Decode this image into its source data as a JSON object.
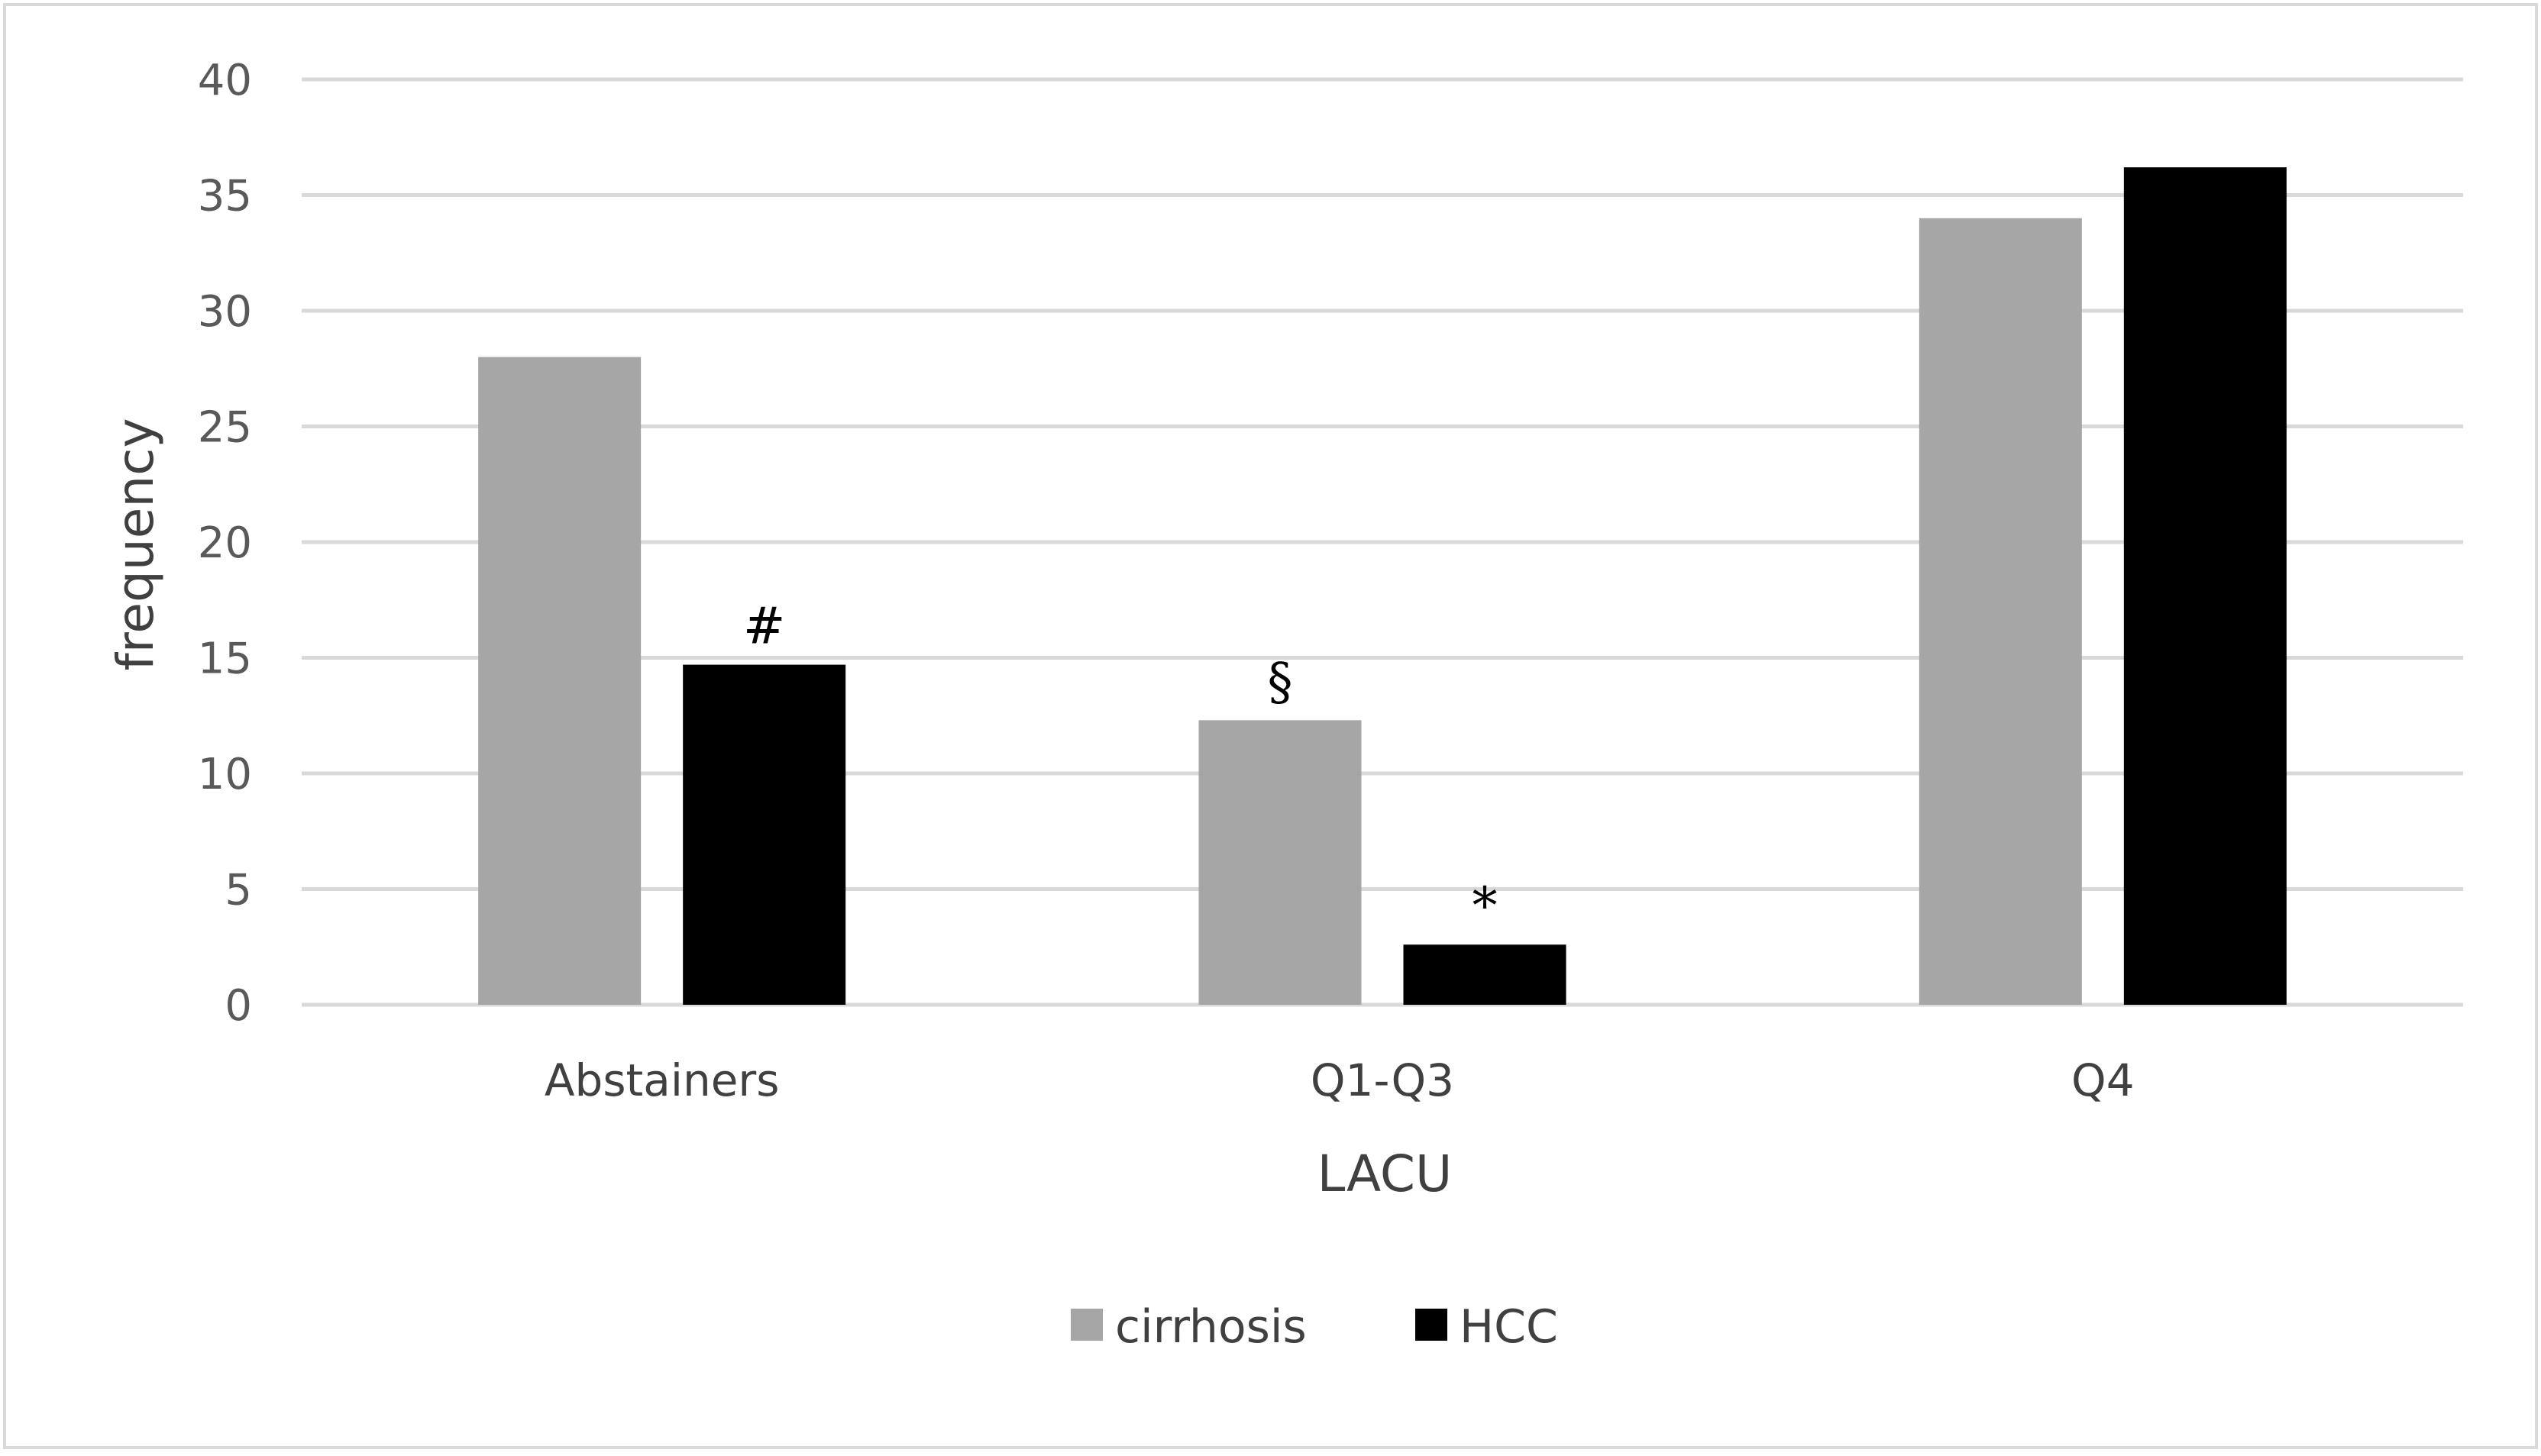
{
  "chart_data": {
    "type": "bar",
    "title": "",
    "xlabel": "LACU",
    "ylabel": "frequency",
    "categories": [
      "Abstainers",
      "Q1-Q3",
      "Q4"
    ],
    "ylim": [
      0,
      40
    ],
    "yticks": [
      0,
      5,
      10,
      15,
      20,
      25,
      30,
      35,
      40
    ],
    "grid": true,
    "legend_position": "bottom",
    "series": [
      {
        "name": "cirrhosis",
        "color": "#a6a6a6",
        "values": [
          28.0,
          12.3,
          34.0
        ]
      },
      {
        "name": "HCC",
        "color": "#000000",
        "values": [
          14.7,
          2.6,
          36.2
        ]
      }
    ],
    "annotations": [
      {
        "text": "#",
        "series": 1,
        "category": 0
      },
      {
        "text": "§",
        "series": 0,
        "category": 1
      },
      {
        "text": "*",
        "series": 1,
        "category": 1
      }
    ]
  }
}
